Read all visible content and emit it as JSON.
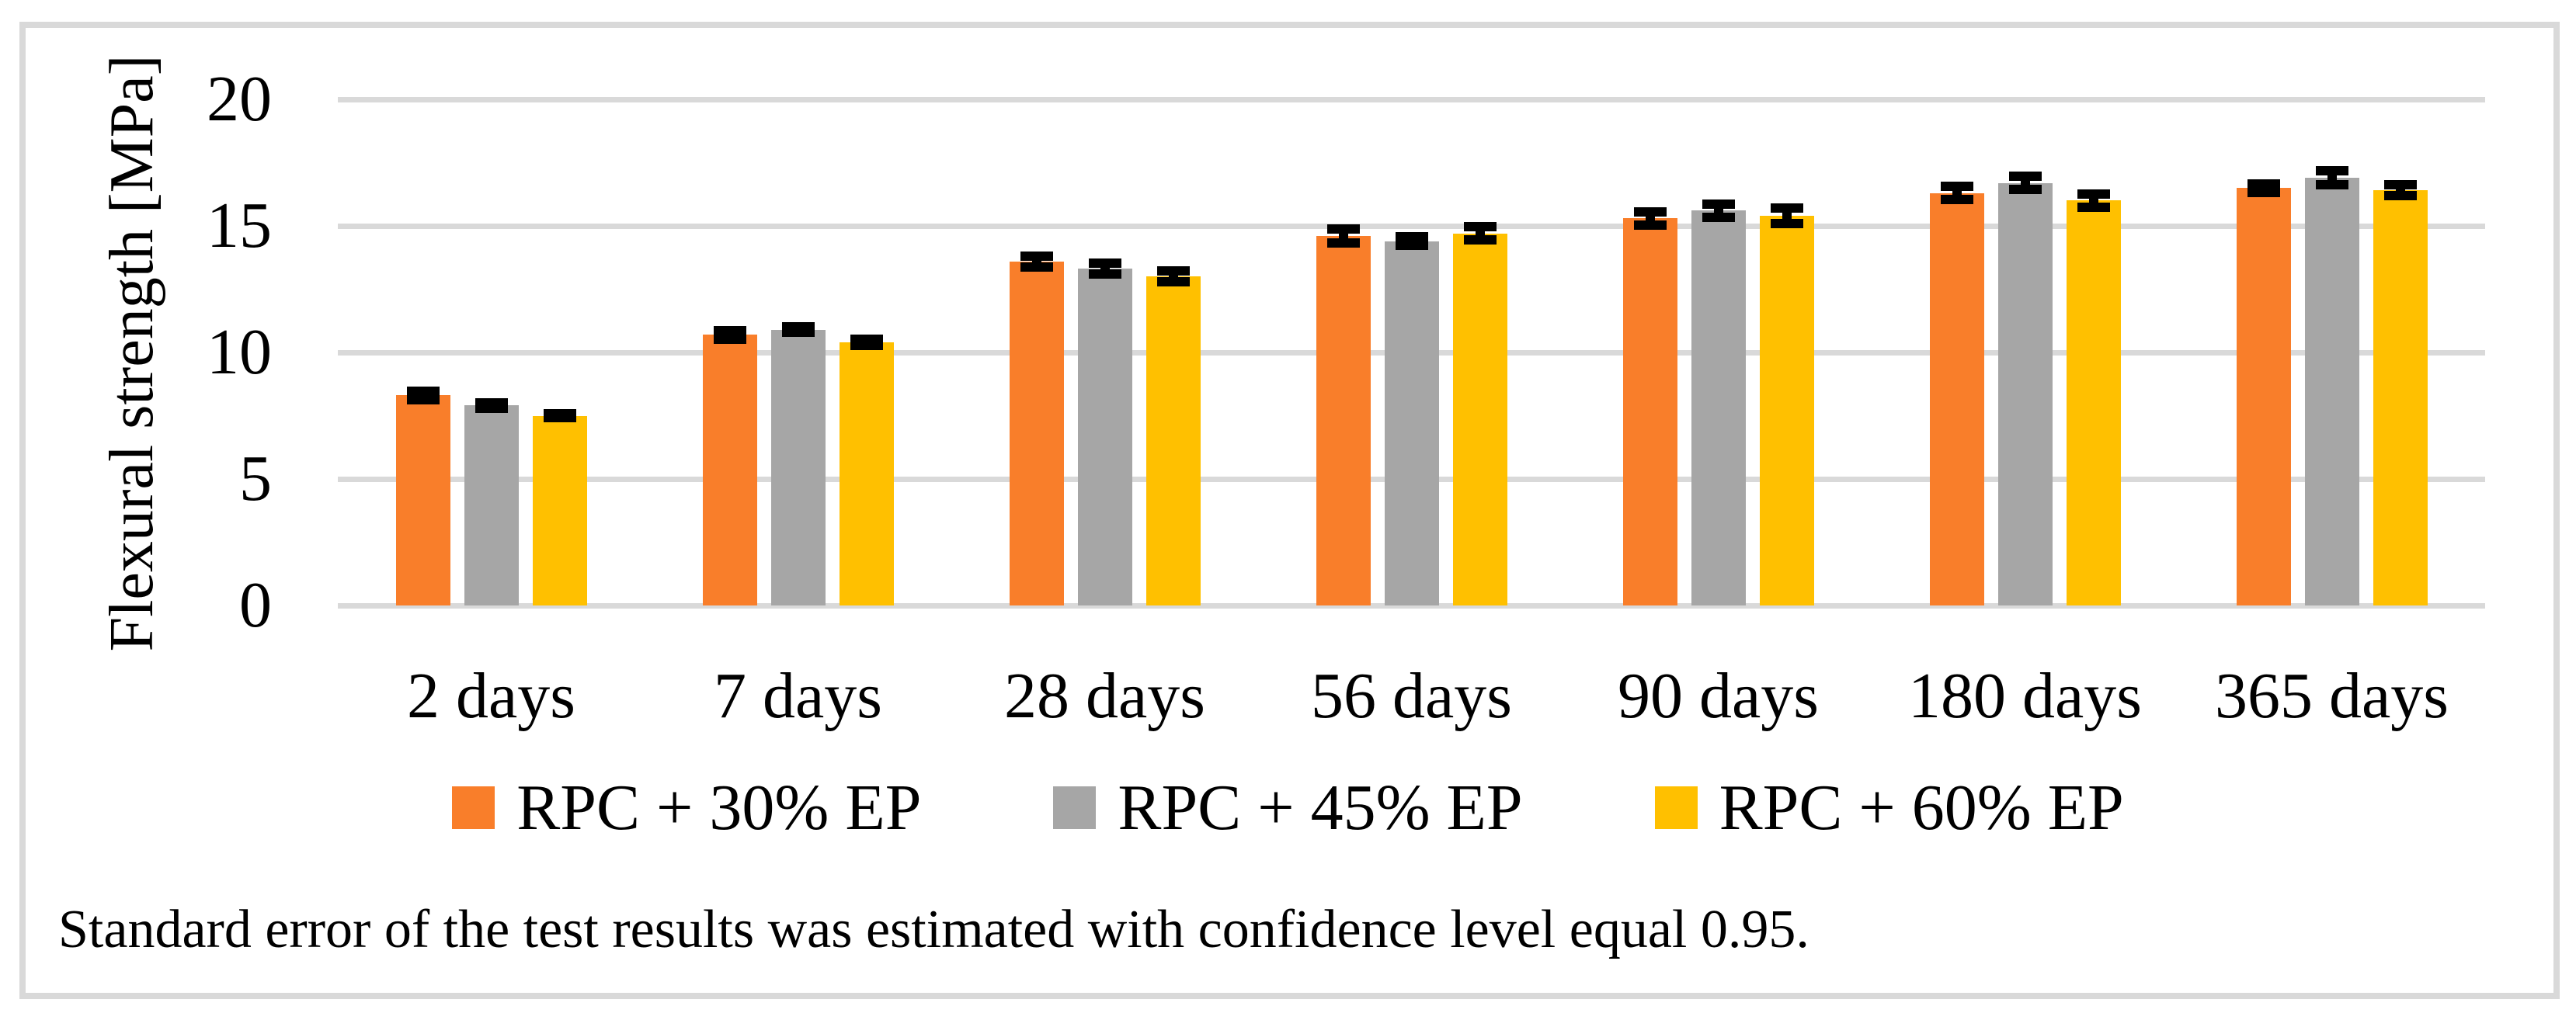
{
  "figure": {
    "footnote": "Standard error of the test results was estimated with confidence level equal 0.95."
  },
  "chart_data": {
    "type": "bar",
    "title": "",
    "xlabel": "",
    "ylabel": "Flexural strength [MPa]",
    "ylim": [
      0,
      20
    ],
    "yticks": [
      0,
      5,
      10,
      15,
      20
    ],
    "grid": true,
    "legend_position": "bottom",
    "error_bars": true,
    "categories": [
      "2 days",
      "7 days",
      "28 days",
      "56 days",
      "90 days",
      "180 days",
      "365 days"
    ],
    "series": [
      {
        "name": "RPC + 30% EP",
        "color": "#F97E2A",
        "values": [
          8.3,
          10.7,
          13.6,
          14.6,
          15.3,
          16.3,
          16.5
        ],
        "errors": [
          0.35,
          0.35,
          0.4,
          0.45,
          0.45,
          0.45,
          0.35
        ]
      },
      {
        "name": "RPC + 45% EP",
        "color": "#A6A6A6",
        "values": [
          7.9,
          10.9,
          13.3,
          14.4,
          15.6,
          16.7,
          16.9
        ],
        "errors": [
          0.3,
          0.3,
          0.4,
          0.35,
          0.45,
          0.45,
          0.45
        ]
      },
      {
        "name": "RPC + 60% EP",
        "color": "#FFC000",
        "values": [
          7.5,
          10.4,
          13.0,
          14.7,
          15.4,
          16.0,
          16.4
        ],
        "errors": [
          0.25,
          0.3,
          0.4,
          0.45,
          0.5,
          0.45,
          0.4
        ]
      }
    ],
    "error_color": "#000000"
  },
  "colors": {
    "background": "#FFFFFF",
    "frame_border": "#D9D9D9",
    "gridline": "#D9D9D9",
    "text": "#000000"
  }
}
